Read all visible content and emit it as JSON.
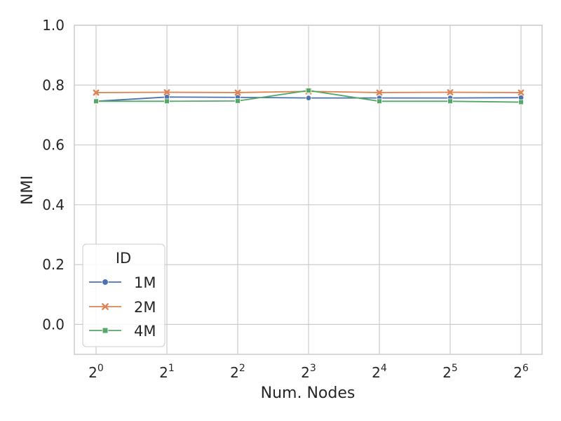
{
  "chart_data": {
    "type": "line",
    "title": "",
    "xlabel": "Num. Nodes",
    "ylabel": "NMI",
    "x_scale": "log2",
    "x": [
      1,
      2,
      4,
      8,
      16,
      32,
      64
    ],
    "x_tick_base": "2",
    "x_tick_exponents": [
      "0",
      "1",
      "2",
      "3",
      "4",
      "5",
      "6"
    ],
    "ylim": [
      -0.1,
      1.0
    ],
    "y_ticks": [
      "0.0",
      "0.2",
      "0.4",
      "0.6",
      "0.8",
      "1.0"
    ],
    "grid": true,
    "legend": {
      "title": "ID",
      "placement": "lower-left"
    },
    "series": [
      {
        "name": "1M",
        "color": "#4c72b0",
        "marker": "circle",
        "values": [
          0.746,
          0.76,
          0.759,
          0.757,
          0.757,
          0.757,
          0.758
        ]
      },
      {
        "name": "2M",
        "color": "#dd8452",
        "marker": "x",
        "values": [
          0.775,
          0.776,
          0.775,
          0.779,
          0.775,
          0.776,
          0.775
        ]
      },
      {
        "name": "4M",
        "color": "#55a868",
        "marker": "square",
        "values": [
          0.746,
          0.746,
          0.747,
          0.782,
          0.746,
          0.746,
          0.743
        ]
      }
    ]
  }
}
